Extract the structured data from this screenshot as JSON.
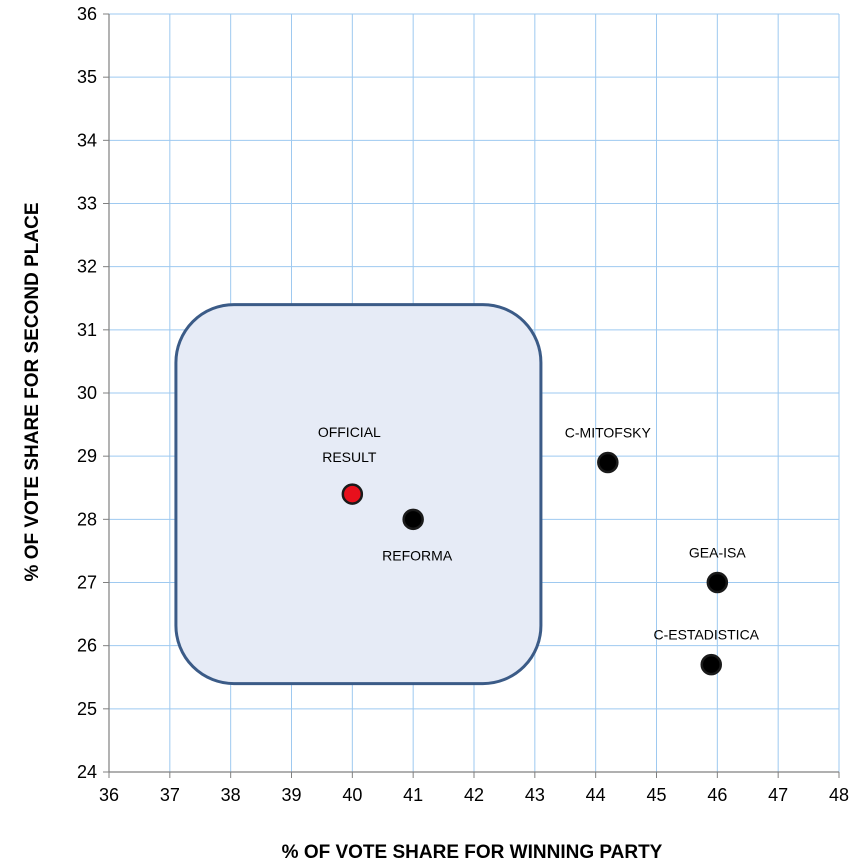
{
  "chart_data": {
    "type": "scatter",
    "xlabel": "% OF VOTE SHARE FOR WINNING PARTY",
    "ylabel": "% OF VOTE SHARE FOR SECOND PLACE",
    "xlim": [
      36,
      48
    ],
    "ylim": [
      24,
      36
    ],
    "xticks": [
      "36",
      "37",
      "38",
      "39",
      "40",
      "41",
      "42",
      "43",
      "44",
      "45",
      "46",
      "47",
      "48"
    ],
    "yticks": [
      "24",
      "25",
      "26",
      "27",
      "28",
      "29",
      "30",
      "31",
      "32",
      "33",
      "34",
      "35",
      "36"
    ],
    "grid": true,
    "points": [
      {
        "label_lines": [
          "OFFICIAL",
          "RESULT"
        ],
        "x": 40.0,
        "y": 28.4,
        "color": "#e8101c"
      },
      {
        "label_lines": [
          "REFORMA"
        ],
        "x": 41.0,
        "y": 28.0,
        "color": "#000000"
      },
      {
        "label_lines": [
          "C-MITOFSKY"
        ],
        "x": 44.2,
        "y": 28.9,
        "color": "#000000"
      },
      {
        "label_lines": [
          "GEA-ISA"
        ],
        "x": 46.0,
        "y": 27.0,
        "color": "#000000"
      },
      {
        "label_lines": [
          "C-ESTADISTICA"
        ],
        "x": 45.9,
        "y": 25.7,
        "color": "#000000"
      }
    ],
    "highlight_region": {
      "x": [
        37.1,
        43.1
      ],
      "y": [
        25.4,
        31.4
      ]
    },
    "colors": {
      "grid": "#9ec9f0",
      "axis": "#808080",
      "region_fill": "#e6ebf6",
      "region_stroke": "#3b5b87"
    }
  }
}
